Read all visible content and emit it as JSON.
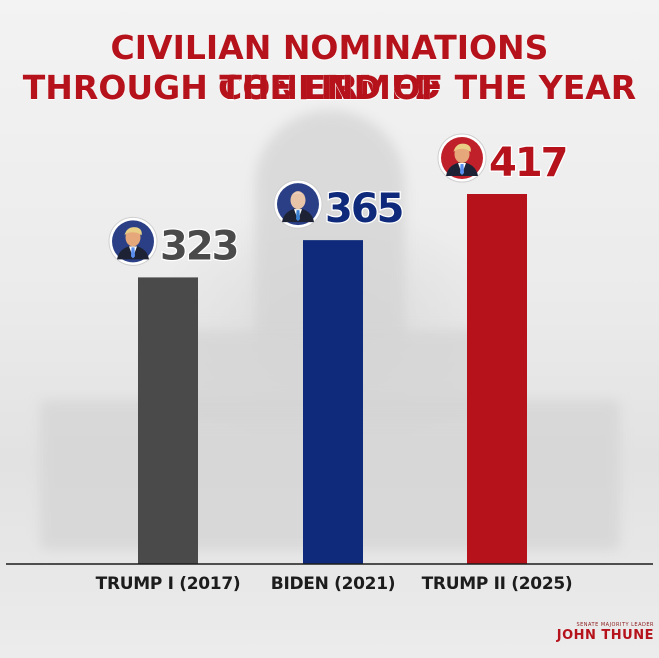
{
  "chart_data": {
    "type": "bar",
    "title_lines": [
      "CIVILIAN NOMINATIONS CONFIRMED",
      "THROUGH THE END OF THE YEAR"
    ],
    "categories": [
      "TRUMP I (2017)",
      "BIDEN (2021)",
      "TRUMP II (2025)"
    ],
    "values": [
      323,
      365,
      417
    ],
    "bar_colors": [
      "#4a4a4a",
      "#0f2a7a",
      "#b5121b"
    ],
    "label_colors": [
      "#4a4a4a",
      "#0f2a7a",
      "#b5121b"
    ],
    "avatar_icons": [
      "trump-portrait-icon",
      "biden-portrait-icon",
      "trump-portrait-icon"
    ],
    "ylim": [
      0,
      417
    ],
    "grid": false,
    "legend": "none"
  },
  "branding": {
    "sub": "SENATE MAJORITY LEADER",
    "main": "JOHN THUNE"
  }
}
